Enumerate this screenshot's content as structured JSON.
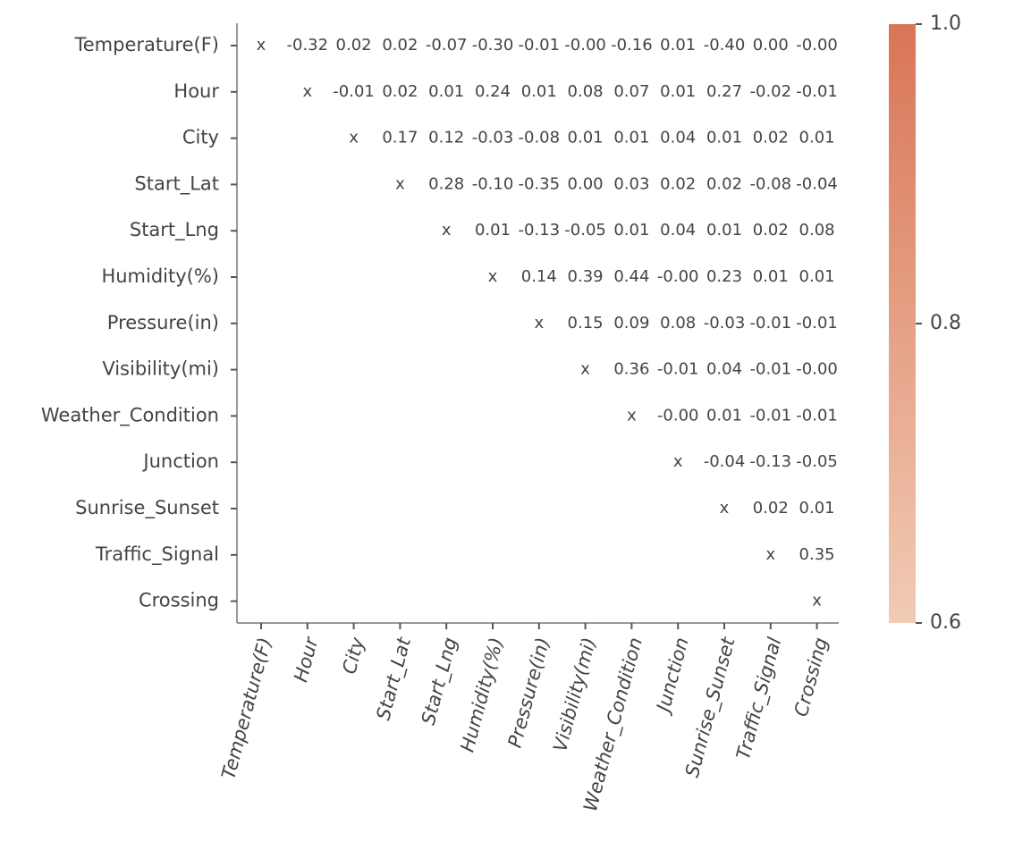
{
  "chart_data": {
    "type": "heatmap",
    "variables": [
      "Temperature(F)",
      "Hour",
      "City",
      "Start_Lat",
      "Start_Lng",
      "Humidity(%)",
      "Pressure(in)",
      "Visibility(mi)",
      "Weather_Condition",
      "Junction",
      "Sunrise_Sunset",
      "Traffic_Signal",
      "Crossing"
    ],
    "diagonal_marker": "x",
    "cells": [
      [
        "x",
        "-0.32",
        "0.02",
        "0.02",
        "-0.07",
        "-0.30",
        "-0.01",
        "-0.00",
        "-0.16",
        "0.01",
        "-0.40",
        "0.00",
        "-0.00"
      ],
      [
        "",
        "x",
        "-0.01",
        "0.02",
        "0.01",
        "0.24",
        "0.01",
        "0.08",
        "0.07",
        "0.01",
        "0.27",
        "-0.02",
        "-0.01"
      ],
      [
        "",
        "",
        "x",
        "0.17",
        "0.12",
        "-0.03",
        "-0.08",
        "0.01",
        "0.01",
        "0.04",
        "0.01",
        "0.02",
        "0.01"
      ],
      [
        "",
        "",
        "",
        "x",
        "0.28",
        "-0.10",
        "-0.35",
        "0.00",
        "0.03",
        "0.02",
        "0.02",
        "-0.08",
        "-0.04"
      ],
      [
        "",
        "",
        "",
        "",
        "x",
        "0.01",
        "-0.13",
        "-0.05",
        "0.01",
        "0.04",
        "0.01",
        "0.02",
        "0.08"
      ],
      [
        "",
        "",
        "",
        "",
        "",
        "x",
        "0.14",
        "0.39",
        "0.44",
        "-0.00",
        "0.23",
        "0.01",
        "0.01"
      ],
      [
        "",
        "",
        "",
        "",
        "",
        "",
        "x",
        "0.15",
        "0.09",
        "0.08",
        "-0.03",
        "-0.01",
        "-0.01"
      ],
      [
        "",
        "",
        "",
        "",
        "",
        "",
        "",
        "x",
        "0.36",
        "-0.01",
        "0.04",
        "-0.01",
        "-0.00"
      ],
      [
        "",
        "",
        "",
        "",
        "",
        "",
        "",
        "",
        "x",
        "-0.00",
        "0.01",
        "-0.01",
        "-0.01"
      ],
      [
        "",
        "",
        "",
        "",
        "",
        "",
        "",
        "",
        "",
        "x",
        "-0.04",
        "-0.13",
        "-0.05"
      ],
      [
        "",
        "",
        "",
        "",
        "",
        "",
        "",
        "",
        "",
        "",
        "x",
        "0.02",
        "0.01"
      ],
      [
        "",
        "",
        "",
        "",
        "",
        "",
        "",
        "",
        "",
        "",
        "",
        "x",
        "0.35"
      ],
      [
        "",
        "",
        "",
        "",
        "",
        "",
        "",
        "",
        "",
        "",
        "",
        "",
        "x"
      ]
    ],
    "colorbar": {
      "range": [
        0.6,
        1.0
      ],
      "ticks": [
        "1.0",
        "0.8",
        "0.6"
      ],
      "color_low": "#f1cbb4",
      "color_high": "#d97556"
    },
    "cell_text_color": "#444444",
    "grid": false
  }
}
